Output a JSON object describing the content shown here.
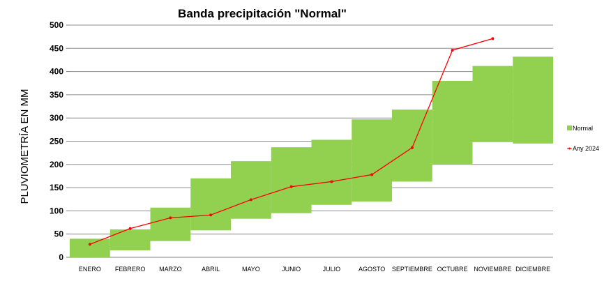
{
  "chart_data": {
    "type": "bar",
    "title": "Banda precipitación \"Normal\"",
    "xlabel": "",
    "ylabel": "PLUVIOMETRÍA EN MM",
    "ylim": [
      0,
      500
    ],
    "yticks": [
      0,
      50,
      100,
      150,
      200,
      250,
      300,
      350,
      400,
      450,
      500
    ],
    "grid": true,
    "legend_position": "right",
    "categories": [
      "ENERO",
      "FEBRERO",
      "MARZO",
      "ABRIL",
      "MAYO",
      "JUNIO",
      "JULIO",
      "AGOSTO",
      "SEPTIEMBRE",
      "OCTUBRE",
      "NOVIEMBRE",
      "DICIEMBRE"
    ],
    "series": [
      {
        "name": "Normal",
        "kind": "range-band",
        "color": "#92d050",
        "low": [
          0,
          15,
          35,
          58,
          83,
          95,
          113,
          120,
          163,
          200,
          248,
          245
        ],
        "high": [
          40,
          60,
          107,
          170,
          207,
          237,
          253,
          297,
          318,
          380,
          412,
          432
        ]
      },
      {
        "name": "Any 2024",
        "kind": "line",
        "color": "#ff0000",
        "values": [
          28,
          62,
          85,
          91,
          124,
          152,
          163,
          178,
          236,
          446,
          471,
          null
        ]
      }
    ]
  }
}
